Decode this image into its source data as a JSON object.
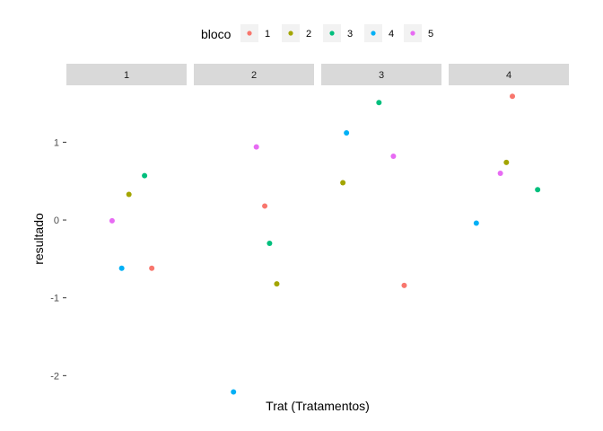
{
  "chart_data": {
    "type": "scatter",
    "facet_by": "Trat",
    "facets": [
      "1",
      "2",
      "3",
      "4"
    ],
    "xlabel": "Trat (Tratamentos)",
    "ylabel": "resultado",
    "ylim": [
      -2.25,
      1.72
    ],
    "yticks": [
      "-2",
      "-1",
      "0",
      "1"
    ],
    "grid": false,
    "legend": {
      "title": "bloco",
      "position": "top",
      "entries": [
        {
          "label": "1",
          "color": "#F8766D"
        },
        {
          "label": "2",
          "color": "#A3A500"
        },
        {
          "label": "3",
          "color": "#00BF7D"
        },
        {
          "label": "4",
          "color": "#00B0F6"
        },
        {
          "label": "5",
          "color": "#E76BF3"
        }
      ]
    },
    "points": [
      {
        "facet": "1",
        "bloco": "1",
        "resultado": -0.62
      },
      {
        "facet": "1",
        "bloco": "2",
        "resultado": 0.33
      },
      {
        "facet": "1",
        "bloco": "3",
        "resultado": 0.57
      },
      {
        "facet": "1",
        "bloco": "4",
        "resultado": -0.62
      },
      {
        "facet": "1",
        "bloco": "5",
        "resultado": -0.01
      },
      {
        "facet": "2",
        "bloco": "1",
        "resultado": 0.18
      },
      {
        "facet": "2",
        "bloco": "2",
        "resultado": -0.82
      },
      {
        "facet": "2",
        "bloco": "3",
        "resultado": -0.3
      },
      {
        "facet": "2",
        "bloco": "4",
        "resultado": -2.21
      },
      {
        "facet": "2",
        "bloco": "5",
        "resultado": 0.94
      },
      {
        "facet": "3",
        "bloco": "1",
        "resultado": -0.84
      },
      {
        "facet": "3",
        "bloco": "2",
        "resultado": 0.48
      },
      {
        "facet": "3",
        "bloco": "3",
        "resultado": 1.51
      },
      {
        "facet": "3",
        "bloco": "4",
        "resultado": 1.12
      },
      {
        "facet": "3",
        "bloco": "5",
        "resultado": 0.82
      },
      {
        "facet": "4",
        "bloco": "1",
        "resultado": 1.59
      },
      {
        "facet": "4",
        "bloco": "2",
        "resultado": 0.74
      },
      {
        "facet": "4",
        "bloco": "3",
        "resultado": 0.39
      },
      {
        "facet": "4",
        "bloco": "4",
        "resultado": -0.04
      },
      {
        "facet": "4",
        "bloco": "5",
        "resultado": 0.6
      }
    ]
  }
}
